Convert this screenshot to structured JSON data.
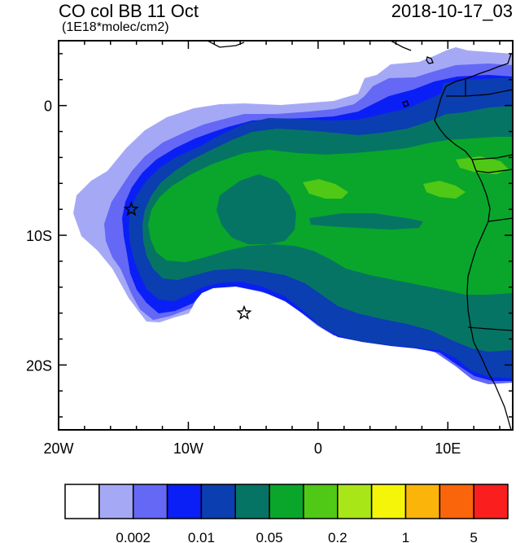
{
  "title": {
    "left": "CO col BB 11 Oct",
    "units": "(1E18*molec/cm2)",
    "right": "2018-10-17_03"
  },
  "axes": {
    "x_ticks": [
      {
        "label": "20W",
        "lon": -20
      },
      {
        "label": "10W",
        "lon": -10
      },
      {
        "label": "0",
        "lon": 0
      },
      {
        "label": "10E",
        "lon": 10
      }
    ],
    "y_ticks": [
      {
        "label": "0",
        "lat": 0
      },
      {
        "label": "10S",
        "lat": -10
      },
      {
        "label": "20S",
        "lat": -20
      }
    ],
    "lon_range": [
      -20,
      15
    ],
    "lat_range": [
      -25,
      5
    ]
  },
  "markers": [
    {
      "name": "star-marker-ascension",
      "lon": -14.4,
      "lat": -8.0
    },
    {
      "name": "star-marker-st-helena",
      "lon": -5.7,
      "lat": -16.0
    }
  ],
  "colorbar": {
    "colors": [
      "#ffffff",
      "#a5a9f5",
      "#6468f5",
      "#0a1ff5",
      "#0b3eb0",
      "#067464",
      "#09a62b",
      "#50c816",
      "#a9e617",
      "#f5f50a",
      "#fab40a",
      "#fa640a",
      "#fa1e1e"
    ],
    "labels": [
      {
        "text": "0.002",
        "boundary": 2
      },
      {
        "text": "0.01",
        "boundary": 4
      },
      {
        "text": "0.05",
        "boundary": 6
      },
      {
        "text": "0.2",
        "boundary": 8
      },
      {
        "text": "1",
        "boundary": 10
      },
      {
        "text": "5",
        "boundary": 12
      }
    ]
  },
  "colors": {
    "lightest": "#a5a9f5",
    "light": "#6468f5",
    "blue": "#0a1ff5",
    "dark_blue": "#0b3eb0",
    "teal": "#067464",
    "green": "#09a62b",
    "lime": "#50c816"
  }
}
